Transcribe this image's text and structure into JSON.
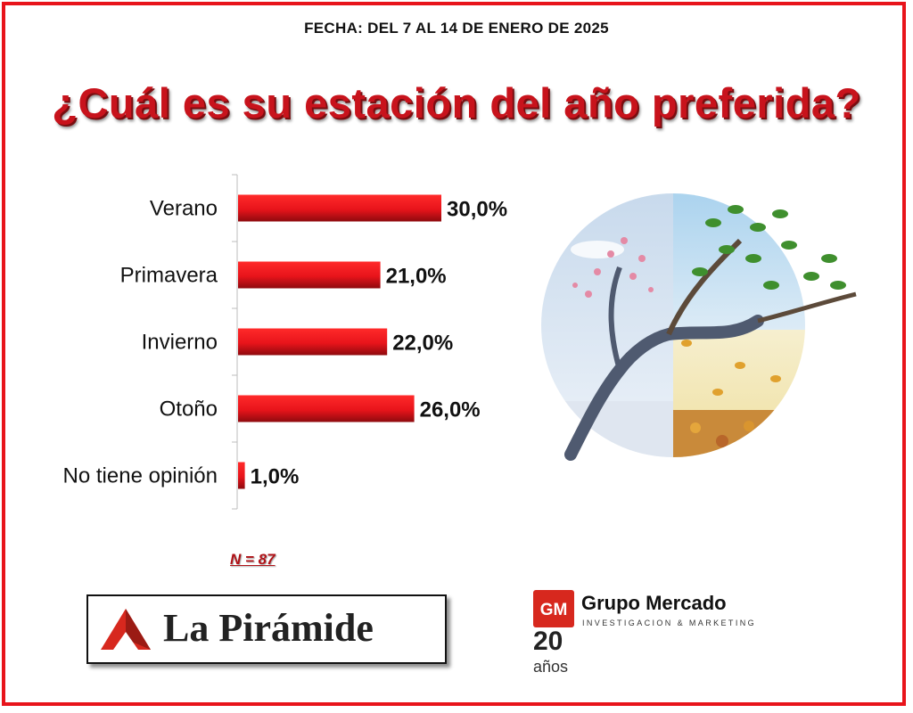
{
  "header": {
    "date": "FECHA: DEL 7 AL 14 DE ENERO DE 2025",
    "question": "¿Cuál es su estación del año preferida?"
  },
  "sample": "N = 87",
  "colors": {
    "bar": "#e8141b",
    "frame": "#e8141b",
    "title": "#c8131c"
  },
  "logos": {
    "la_piramide": "La Pirámide",
    "grupo_mercado": "Grupo Mercado",
    "grupo_mercado_sub": "INVESTIGACION & MARKETING",
    "grupo_mercado_years": "20",
    "grupo_mercado_years_label": "años"
  },
  "chart_data": {
    "type": "bar",
    "orientation": "horizontal",
    "categories": [
      "Verano",
      "Primavera",
      "Invierno",
      "Otoño",
      "No tiene opinión"
    ],
    "values": [
      30.0,
      21.0,
      22.0,
      26.0,
      1.0
    ],
    "value_labels": [
      "30,0%",
      "21,0%",
      "22,0%",
      "26,0%",
      "1,0%"
    ],
    "xlim": [
      0,
      100
    ],
    "grid": false,
    "legend": "none"
  }
}
